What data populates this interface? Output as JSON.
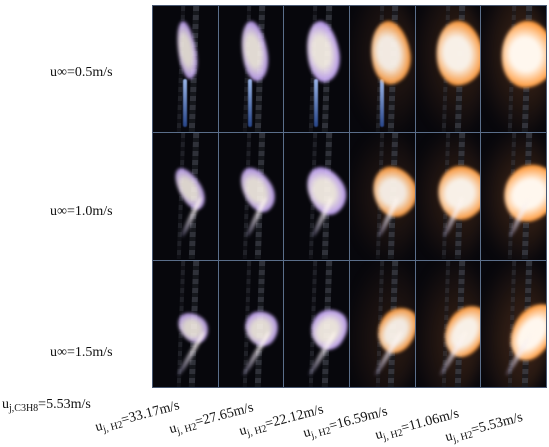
{
  "rows": [
    {
      "label": "u∞=0.5m/s"
    },
    {
      "label": "u∞=1.0m/s"
    },
    {
      "label": "u∞=1.5m/s"
    }
  ],
  "bottom_left": {
    "base": "u",
    "sub": "j,C3H8",
    "rest": "=5.53m/s"
  },
  "columns": [
    {
      "base": "u",
      "sub": "j, H2",
      "rest": "=33.17m/s"
    },
    {
      "base": "u",
      "sub": "j, H2",
      "rest": "=27.65m/s"
    },
    {
      "base": "u",
      "sub": "j, H2",
      "rest": "=22.12m/s"
    },
    {
      "base": "u",
      "sub": "j, H2",
      "rest": "=16.59m/s"
    },
    {
      "base": "u",
      "sub": "j, H2",
      "rest": "=11.06m/s"
    },
    {
      "base": "u",
      "sub": "j, H2",
      "rest": "=5.53m/s"
    }
  ],
  "colors": {
    "panel_background": "#07070c",
    "grid_border": "#5a6e8a",
    "flame_core": "#fff7ee",
    "flame_warm": "#ff9a3c",
    "flame_cool": "#c7a6ff"
  }
}
